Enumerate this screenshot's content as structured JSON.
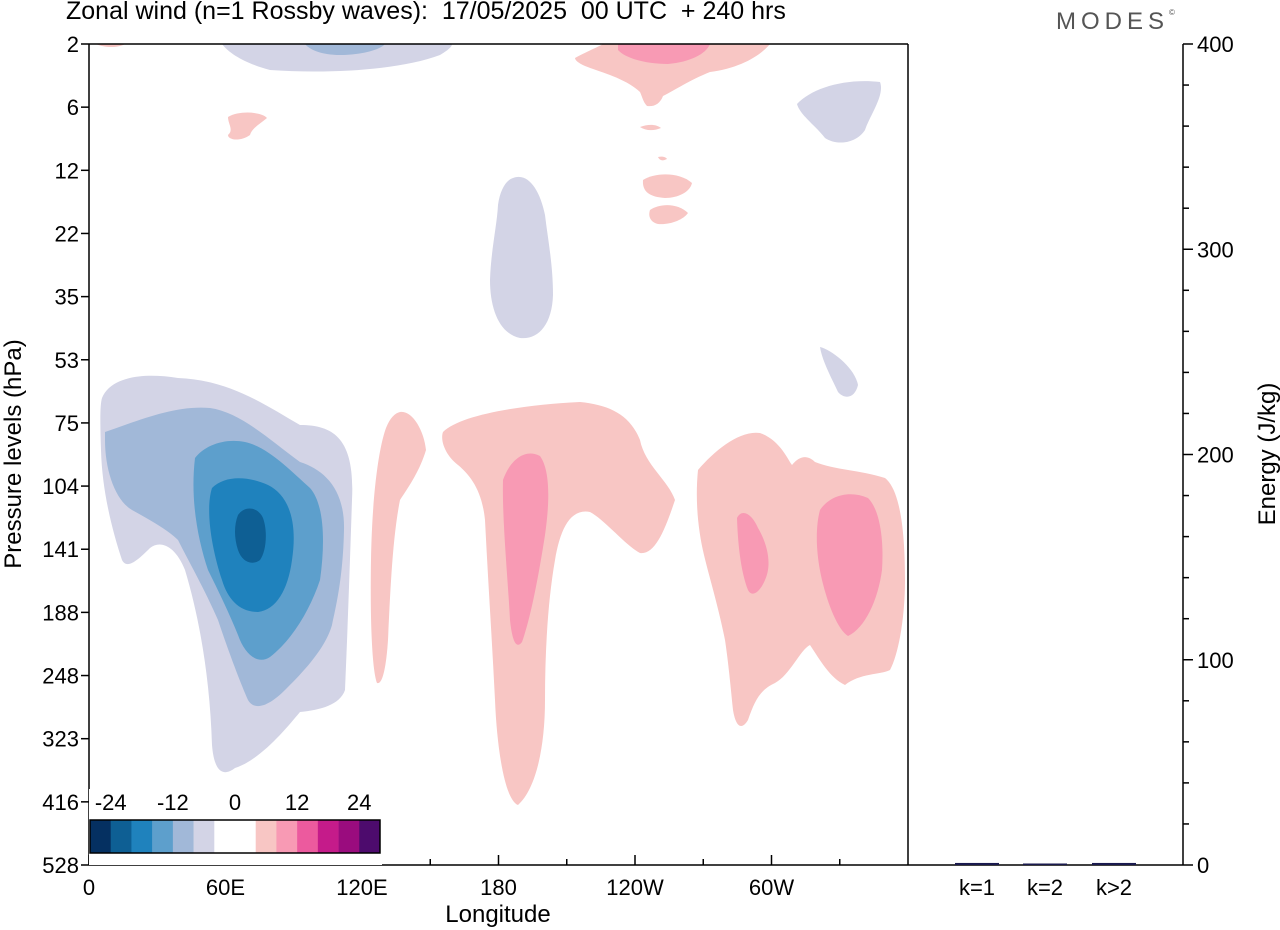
{
  "title": "Zonal wind (n=1 Rossby waves):  17/05/2025  00 UTC  + 240 hrs",
  "logo": "MODES",
  "logo_mark": "©",
  "colors": {
    "n24": "#053061",
    "n20": "#0e5f94",
    "n16": "#1f82bd",
    "n12": "#5d9fcc",
    "n8": "#a1b8d8",
    "n4": "#d3d4e6",
    "zero": "#ffffff",
    "p4": "#f8c6c4",
    "p8": "#f89ab4",
    "p12": "#ec5a9e",
    "p16": "#c51b8a",
    "p20": "#9a0c7e",
    "p24": "#4d0b6d",
    "bar": "#1a1a4e"
  },
  "chart_data": [
    {
      "type": "heatmap",
      "variable": "Zonal wind",
      "xlabel": "Longitude",
      "ylabel": "Pressure levels (hPa)",
      "x_ticks": [
        "0",
        "60E",
        "120E",
        "180",
        "120W",
        "60W"
      ],
      "x_tick_degrees": [
        0,
        60,
        120,
        180,
        240,
        300
      ],
      "xlim": [
        0,
        360
      ],
      "y_ticks": [
        2,
        6,
        12,
        22,
        35,
        53,
        75,
        104,
        141,
        188,
        248,
        323,
        416,
        528
      ],
      "ylim": [
        2,
        528
      ],
      "colorbar": {
        "labels": [
          "-24",
          "-12",
          "0",
          "12",
          "24"
        ],
        "levels": [
          -24,
          -20,
          -16,
          -12,
          -8,
          -4,
          0,
          4,
          8,
          12,
          16,
          20,
          24
        ]
      },
      "contours": [
        {
          "level": -4,
          "center_lon": 70,
          "center_hpa": 141,
          "lon_range": [
            5,
            115
          ],
          "hpa_range": [
            53,
            416
          ]
        },
        {
          "level": -8,
          "center_lon": 70,
          "center_hpa": 141,
          "lon_range": [
            15,
            110
          ],
          "hpa_range": [
            75,
            323
          ]
        },
        {
          "level": -12,
          "center_lon": 70,
          "center_hpa": 141,
          "lon_range": [
            40,
            100
          ],
          "hpa_range": [
            90,
            248
          ]
        },
        {
          "level": -16,
          "center_lon": 70,
          "center_hpa": 141,
          "lon_range": [
            53,
            90
          ],
          "hpa_range": [
            104,
            188
          ]
        },
        {
          "level": -20,
          "center_lon": 70,
          "center_hpa": 141,
          "lon_range": [
            64,
            78
          ],
          "hpa_range": [
            115,
            155
          ]
        },
        {
          "level": 4,
          "center_lon": 190,
          "center_hpa": 141,
          "lon_range": [
            155,
            255
          ],
          "hpa_range": [
            75,
            416
          ]
        },
        {
          "level": 8,
          "center_lon": 190,
          "center_hpa": 141,
          "lon_range": [
            180,
            200
          ],
          "hpa_range": [
            100,
            200
          ]
        },
        {
          "level": 4,
          "center_lon": 330,
          "center_hpa": 141,
          "lon_range": [
            270,
            360
          ],
          "hpa_range": [
            75,
            323
          ]
        },
        {
          "level": 8,
          "center_lon": 340,
          "center_hpa": 141,
          "lon_range": [
            320,
            360
          ],
          "hpa_range": [
            115,
            188
          ]
        },
        {
          "level": -4,
          "center_lon": 190,
          "center_hpa": 22,
          "lon_range": [
            175,
            205
          ],
          "hpa_range": [
            12,
            53
          ]
        }
      ]
    },
    {
      "type": "bar",
      "categories": [
        "k=1",
        "k=2",
        "k>2"
      ],
      "values": [
        1,
        0.5,
        1
      ],
      "ylabel": "Energy (J/kg)",
      "ylim": [
        0,
        400
      ],
      "y_ticks": [
        0,
        100,
        200,
        300,
        400
      ]
    }
  ]
}
